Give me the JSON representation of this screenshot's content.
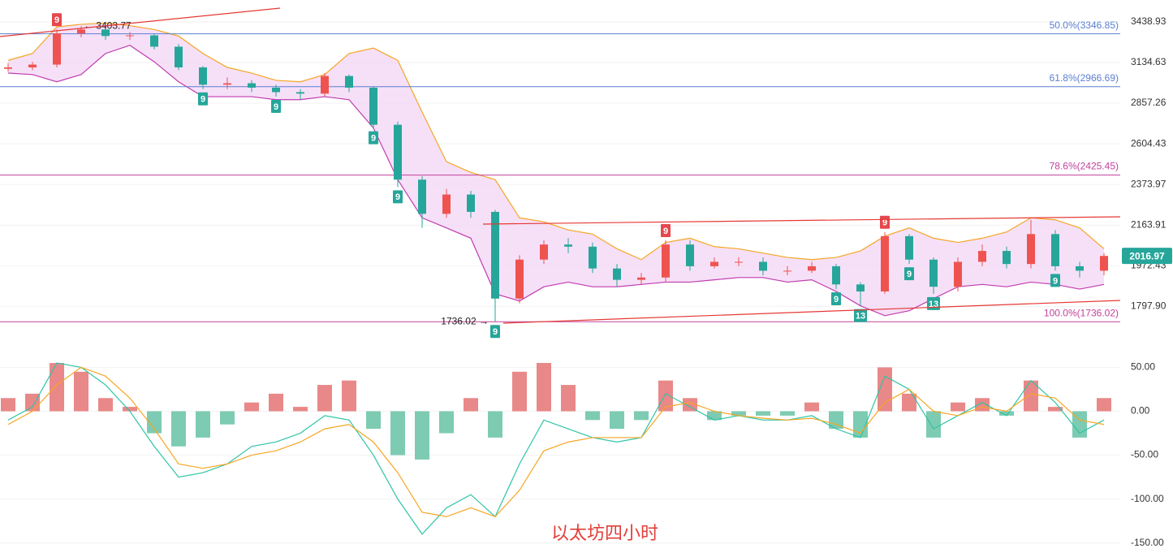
{
  "chart_data": [
    {
      "type": "candlestick",
      "log_scale": true,
      "grid": true,
      "ylim": [
        1708,
        3615
      ],
      "yticks": [
        {
          "value": 3438.93,
          "label": "3438.93"
        },
        {
          "value": 3134.63,
          "label": "3134.63"
        },
        {
          "value": 2857.26,
          "label": "2857.26"
        },
        {
          "value": 2604.43,
          "label": "2604.43"
        },
        {
          "value": 2373.97,
          "label": "2373.97"
        },
        {
          "value": 2163.91,
          "label": "2163.91"
        },
        {
          "value": 1972.43,
          "label": "1972.43"
        },
        {
          "value": 1797.9,
          "label": "1797.90"
        }
      ],
      "up_color": "#ef5350",
      "down_color": "#26a69a",
      "open": [
        3090,
        3100,
        3120,
        3350,
        3380,
        3330,
        3335,
        3250,
        3100,
        2980,
        2990,
        2960,
        2930,
        2920,
        3040,
        2960,
        2720,
        2400,
        2220,
        2320,
        2230,
        1830,
        2000,
        2070,
        2060,
        1960,
        1910,
        1920,
        2070,
        1970,
        1990,
        1990,
        1950,
        1950,
        1970,
        1890,
        1860,
        2110,
        2000,
        1880,
        1990,
        2040,
        1980,
        2120,
        1970,
        1950
      ],
      "high": [
        3130,
        3140,
        3380,
        3403.77,
        3395,
        3360,
        3345,
        3270,
        3110,
        3030,
        3010,
        2980,
        2950,
        3060,
        3050,
        2970,
        2740,
        2420,
        2350,
        2340,
        2240,
        2020,
        2090,
        2100,
        2080,
        1980,
        1940,
        2090,
        2090,
        2010,
        2010,
        2010,
        1970,
        1990,
        1980,
        1900,
        2130,
        2120,
        2010,
        2010,
        2070,
        2060,
        2190,
        2140,
        1990,
        2030
      ],
      "low": [
        3070,
        3080,
        3100,
        3320,
        3300,
        3300,
        3230,
        3080,
        2950,
        2950,
        2930,
        2900,
        2880,
        2900,
        2930,
        2700,
        2360,
        2150,
        2200,
        2200,
        1736.02,
        1810,
        1980,
        2030,
        1940,
        1880,
        1890,
        1900,
        1950,
        1960,
        1970,
        1930,
        1930,
        1940,
        1870,
        1800,
        1850,
        1980,
        1850,
        1860,
        1970,
        1960,
        1960,
        1950,
        1920,
        1930
      ],
      "close": [
        3100,
        3120,
        3350,
        3380,
        3330,
        3335,
        3250,
        3100,
        2980,
        2990,
        2960,
        2930,
        2920,
        3040,
        2960,
        2720,
        2400,
        2220,
        2320,
        2230,
        1830,
        2000,
        2070,
        2060,
        1960,
        1910,
        1920,
        2070,
        1970,
        1990,
        1990,
        1950,
        1950,
        1970,
        1890,
        1860,
        2110,
        2000,
        1880,
        1990,
        2040,
        1980,
        2120,
        1970,
        1950,
        2017
      ],
      "band_upper": [
        3150,
        3200,
        3400,
        3420,
        3430,
        3410,
        3380,
        3330,
        3200,
        3100,
        3060,
        3010,
        3000,
        3050,
        3200,
        3240,
        3150,
        2800,
        2500,
        2440,
        2400,
        2200,
        2180,
        2140,
        2120,
        2050,
        2000,
        2080,
        2100,
        2060,
        2050,
        2030,
        2010,
        2000,
        2010,
        2040,
        2110,
        2150,
        2100,
        2080,
        2100,
        2130,
        2200,
        2190,
        2150,
        2050
      ],
      "band_lower": [
        3060,
        3050,
        3000,
        3050,
        3200,
        3260,
        3140,
        3000,
        2900,
        2900,
        2900,
        2880,
        2880,
        2900,
        2880,
        2700,
        2400,
        2200,
        2150,
        2100,
        1850,
        1820,
        1880,
        1900,
        1880,
        1880,
        1890,
        1900,
        1900,
        1910,
        1920,
        1920,
        1900,
        1910,
        1860,
        1800,
        1760,
        1780,
        1830,
        1880,
        1890,
        1880,
        1900,
        1890,
        1870,
        1890
      ],
      "fib_levels": [
        {
          "label": "50.0%(3346.85)",
          "value": 3346.85,
          "color": "#5b7fd1"
        },
        {
          "label": "61.8%(2966.69)",
          "value": 2966.69,
          "color": "#5b7fd1"
        },
        {
          "label": "78.6%(2425.45)",
          "value": 2425.45,
          "color": "#c2409b"
        },
        {
          "label": "100.0%(1736.02)",
          "value": 1736.02,
          "color": "#c2409b"
        }
      ],
      "annotations": [
        {
          "label": "← 3403.77",
          "value": 3403.77,
          "index": 3,
          "side": "right"
        },
        {
          "label": "1736.02 →",
          "value": 1736.02,
          "index": 20,
          "side": "left"
        }
      ],
      "markers": [
        {
          "label": "9",
          "index": 2,
          "kind": "sell"
        },
        {
          "label": "9",
          "index": 8,
          "kind": "buy"
        },
        {
          "label": "9",
          "index": 11,
          "kind": "buy"
        },
        {
          "label": "9",
          "index": 15,
          "kind": "buy"
        },
        {
          "label": "9",
          "index": 16,
          "kind": "buy"
        },
        {
          "label": "9",
          "index": 20,
          "kind": "buy"
        },
        {
          "label": "9",
          "index": 27,
          "kind": "sell"
        },
        {
          "label": "9",
          "index": 34,
          "kind": "buy"
        },
        {
          "label": "13",
          "index": 35,
          "kind": "buy"
        },
        {
          "label": "9",
          "index": 36,
          "kind": "sell"
        },
        {
          "label": "9",
          "index": 37,
          "kind": "buy"
        },
        {
          "label": "13",
          "index": 38,
          "kind": "buy"
        },
        {
          "label": "9",
          "index": 43,
          "kind": "buy"
        }
      ],
      "last_price": {
        "value": 2016.97,
        "label": "2016.97",
        "color": "#26a69a"
      }
    },
    {
      "type": "macd",
      "grid": true,
      "ylim": [
        -166,
        80
      ],
      "yticks": [
        {
          "value": 50,
          "label": "50.00"
        },
        {
          "value": 0,
          "label": "0.00"
        },
        {
          "value": -50,
          "label": "-50.00"
        },
        {
          "value": -100,
          "label": "-100.00"
        },
        {
          "value": -150,
          "label": "-150.00"
        }
      ],
      "histogram": [
        15,
        20,
        55,
        45,
        15,
        5,
        -25,
        -40,
        -30,
        -15,
        10,
        20,
        5,
        30,
        35,
        -20,
        -50,
        -55,
        -25,
        15,
        -30,
        45,
        55,
        30,
        -10,
        -20,
        -10,
        35,
        15,
        -10,
        -5,
        -5,
        -5,
        10,
        -20,
        -30,
        50,
        20,
        -30,
        10,
        15,
        -5,
        35,
        5,
        -30,
        15
      ],
      "series": [
        {
          "color": "#2ec4a6",
          "values": [
            -10,
            5,
            55,
            50,
            30,
            0,
            -40,
            -75,
            -70,
            -60,
            -40,
            -35,
            -25,
            -5,
            -10,
            -50,
            -100,
            -140,
            -110,
            -95,
            -120,
            -60,
            -10,
            -20,
            -30,
            -35,
            -30,
            20,
            5,
            -10,
            -5,
            -10,
            -10,
            -5,
            -20,
            -30,
            40,
            25,
            -20,
            -5,
            10,
            -5,
            35,
            10,
            -25,
            -10
          ]
        },
        {
          "color": "#f5a623",
          "values": [
            -15,
            0,
            30,
            50,
            40,
            15,
            -20,
            -60,
            -65,
            -60,
            -50,
            -45,
            -35,
            -20,
            -15,
            -35,
            -70,
            -115,
            -120,
            -110,
            -120,
            -90,
            -45,
            -35,
            -30,
            -30,
            -30,
            5,
            10,
            0,
            -5,
            -8,
            -10,
            -8,
            -15,
            -25,
            10,
            25,
            0,
            -5,
            5,
            0,
            20,
            15,
            -10,
            -15
          ]
        }
      ],
      "pos_color": "#e57373",
      "neg_color": "#66c2a5"
    }
  ],
  "caption": "以太坊四小时"
}
